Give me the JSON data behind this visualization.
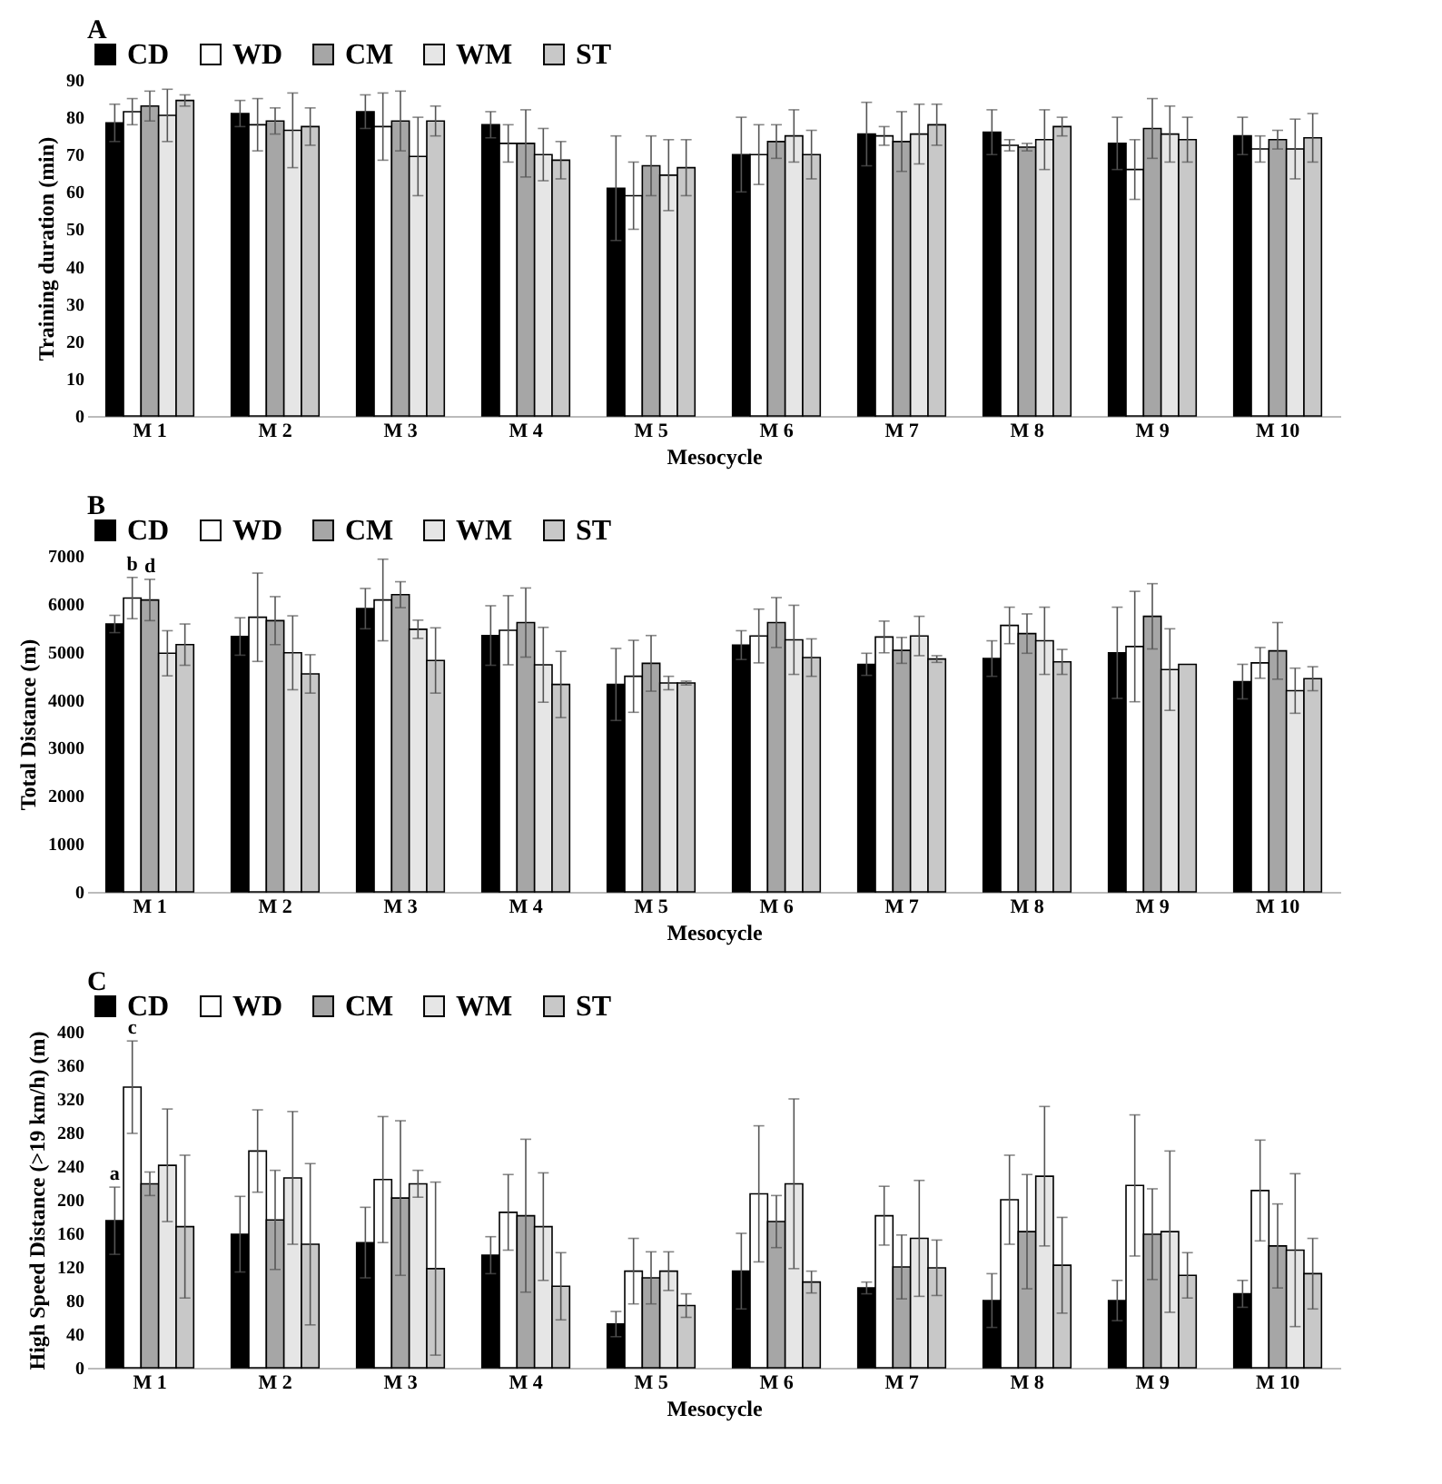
{
  "chart_data": [
    {
      "type": "bar",
      "title": "A",
      "xlabel": "Mesocycle",
      "ylabel": "Training duration (min)",
      "categories": [
        "M 1",
        "M 2",
        "M 3",
        "M 4",
        "M 5",
        "M 6",
        "M 7",
        "M 8",
        "M 9",
        "M 10"
      ],
      "ylim": [
        0,
        90
      ],
      "yticks": [
        0,
        10,
        20,
        30,
        40,
        50,
        60,
        70,
        80,
        90
      ],
      "legend": "top",
      "series": [
        {
          "name": "CD",
          "color": "#000000",
          "values": [
            78.5,
            81,
            81.5,
            78,
            61,
            70,
            75.5,
            76,
            73,
            75
          ],
          "errors": [
            5,
            3.5,
            4.5,
            3.5,
            14,
            10,
            8.5,
            6,
            7,
            5
          ]
        },
        {
          "name": "WD",
          "color": "#ffffff",
          "values": [
            81.5,
            78,
            77.5,
            73,
            59,
            70,
            75,
            72.5,
            66,
            71.5
          ],
          "errors": [
            3.5,
            7,
            9,
            5,
            9,
            8,
            2.5,
            1.5,
            8,
            3.5
          ]
        },
        {
          "name": "CM",
          "color": "#a6a6a6",
          "values": [
            83,
            79,
            79,
            73,
            67,
            73.5,
            73.5,
            72,
            77,
            74
          ],
          "errors": [
            4,
            3.5,
            8,
            9,
            8,
            4.5,
            8,
            1,
            8,
            2.5
          ]
        },
        {
          "name": "WM",
          "color": "#e6e6e6",
          "values": [
            80.5,
            76.5,
            69.5,
            70,
            64.5,
            75,
            75.5,
            74,
            75.5,
            71.5
          ],
          "errors": [
            7,
            10,
            10.5,
            7,
            9.5,
            7,
            8,
            8,
            7.5,
            8
          ]
        },
        {
          "name": "ST",
          "color": "#c8c8c8",
          "values": [
            84.5,
            77.5,
            79,
            68.5,
            66.5,
            70,
            78,
            77.5,
            74,
            74.5
          ],
          "errors": [
            1.5,
            5,
            4,
            5,
            7.5,
            6.5,
            5.5,
            2.5,
            6,
            6.5
          ]
        }
      ]
    },
    {
      "type": "bar",
      "title": "B",
      "xlabel": "Mesocycle",
      "ylabel": "Total Distance (m)",
      "categories": [
        "M 1",
        "M 2",
        "M 3",
        "M 4",
        "M 5",
        "M 6",
        "M 7",
        "M 8",
        "M 9",
        "M 10"
      ],
      "ylim": [
        0,
        7000
      ],
      "yticks": [
        0,
        1000,
        2000,
        3000,
        4000,
        5000,
        6000,
        7000
      ],
      "legend": "top",
      "annotations": [
        {
          "text": "b",
          "x": "M 1",
          "y": 6120
        },
        {
          "text": "d",
          "x": "M 1",
          "y": 6080
        }
      ],
      "series": [
        {
          "name": "CD",
          "color": "#000000",
          "values": [
            5580,
            5320,
            5900,
            5340,
            4320,
            5140,
            4740,
            4860,
            4980,
            4380
          ],
          "errors": [
            180,
            390,
            420,
            620,
            750,
            300,
            230,
            370,
            950,
            360
          ]
        },
        {
          "name": "WD",
          "color": "#ffffff",
          "values": [
            6120,
            5720,
            6080,
            5450,
            4490,
            5330,
            5310,
            5550,
            5110,
            4770
          ],
          "errors": [
            430,
            920,
            850,
            720,
            750,
            560,
            330,
            380,
            1150,
            320
          ]
        },
        {
          "name": "CM",
          "color": "#a6a6a6",
          "values": [
            6080,
            5650,
            6190,
            5610,
            4760,
            5610,
            5030,
            5380,
            5740,
            5020
          ],
          "errors": [
            430,
            500,
            270,
            720,
            580,
            520,
            270,
            410,
            680,
            590
          ]
        },
        {
          "name": "WM",
          "color": "#e6e6e6",
          "values": [
            4970,
            4980,
            5470,
            4730,
            4350,
            5250,
            5330,
            5230,
            4630,
            4190
          ],
          "errors": [
            470,
            770,
            190,
            780,
            140,
            720,
            410,
            700,
            850,
            470
          ]
        },
        {
          "name": "ST",
          "color": "#c8c8c8",
          "values": [
            5150,
            4540,
            4820,
            4320,
            4350,
            4880,
            4850,
            4790,
            4740,
            4440
          ],
          "errors": [
            430,
            400,
            680,
            690,
            40,
            390,
            70,
            260,
            null,
            250
          ]
        }
      ]
    },
    {
      "type": "bar",
      "title": "C",
      "xlabel": "Mesocycle",
      "ylabel": "High Speed Distance (>19 km/h) (m)",
      "categories": [
        "M 1",
        "M 2",
        "M 3",
        "M 4",
        "M 5",
        "M 6",
        "M 7",
        "M 8",
        "M 9",
        "M 10"
      ],
      "ylim": [
        0,
        400
      ],
      "yticks": [
        0,
        40,
        80,
        120,
        160,
        200,
        240,
        280,
        320,
        360,
        400
      ],
      "legend": "top",
      "annotations": [
        {
          "text": "a",
          "x": "M 1",
          "y": 175
        },
        {
          "text": "c",
          "x": "M 1",
          "y": 334
        }
      ],
      "series": [
        {
          "name": "CD",
          "color": "#000000",
          "values": [
            175,
            159,
            149,
            134,
            52,
            115,
            95,
            80,
            80,
            88
          ],
          "errors": [
            40,
            45,
            42,
            22,
            15,
            45,
            7,
            32,
            24,
            16
          ]
        },
        {
          "name": "WD",
          "color": "#ffffff",
          "values": [
            334,
            258,
            224,
            185,
            115,
            207,
            181,
            200,
            217,
            211
          ],
          "errors": [
            55,
            49,
            75,
            45,
            39,
            81,
            35,
            53,
            84,
            60
          ]
        },
        {
          "name": "CM",
          "color": "#a6a6a6",
          "values": [
            219,
            176,
            202,
            181,
            107,
            174,
            120,
            162,
            159,
            145
          ],
          "errors": [
            14,
            59,
            92,
            91,
            31,
            31,
            38,
            68,
            54,
            50
          ]
        },
        {
          "name": "WM",
          "color": "#e6e6e6",
          "values": [
            241,
            226,
            219,
            168,
            115,
            219,
            154,
            228,
            162,
            140
          ],
          "errors": [
            67,
            79,
            16,
            64,
            23,
            101,
            69,
            83,
            96,
            91
          ]
        },
        {
          "name": "ST",
          "color": "#c8c8c8",
          "values": [
            168,
            147,
            118,
            97,
            74,
            102,
            119,
            122,
            110,
            112
          ],
          "errors": [
            85,
            96,
            103,
            40,
            14,
            13,
            33,
            57,
            27,
            42
          ]
        }
      ]
    }
  ]
}
